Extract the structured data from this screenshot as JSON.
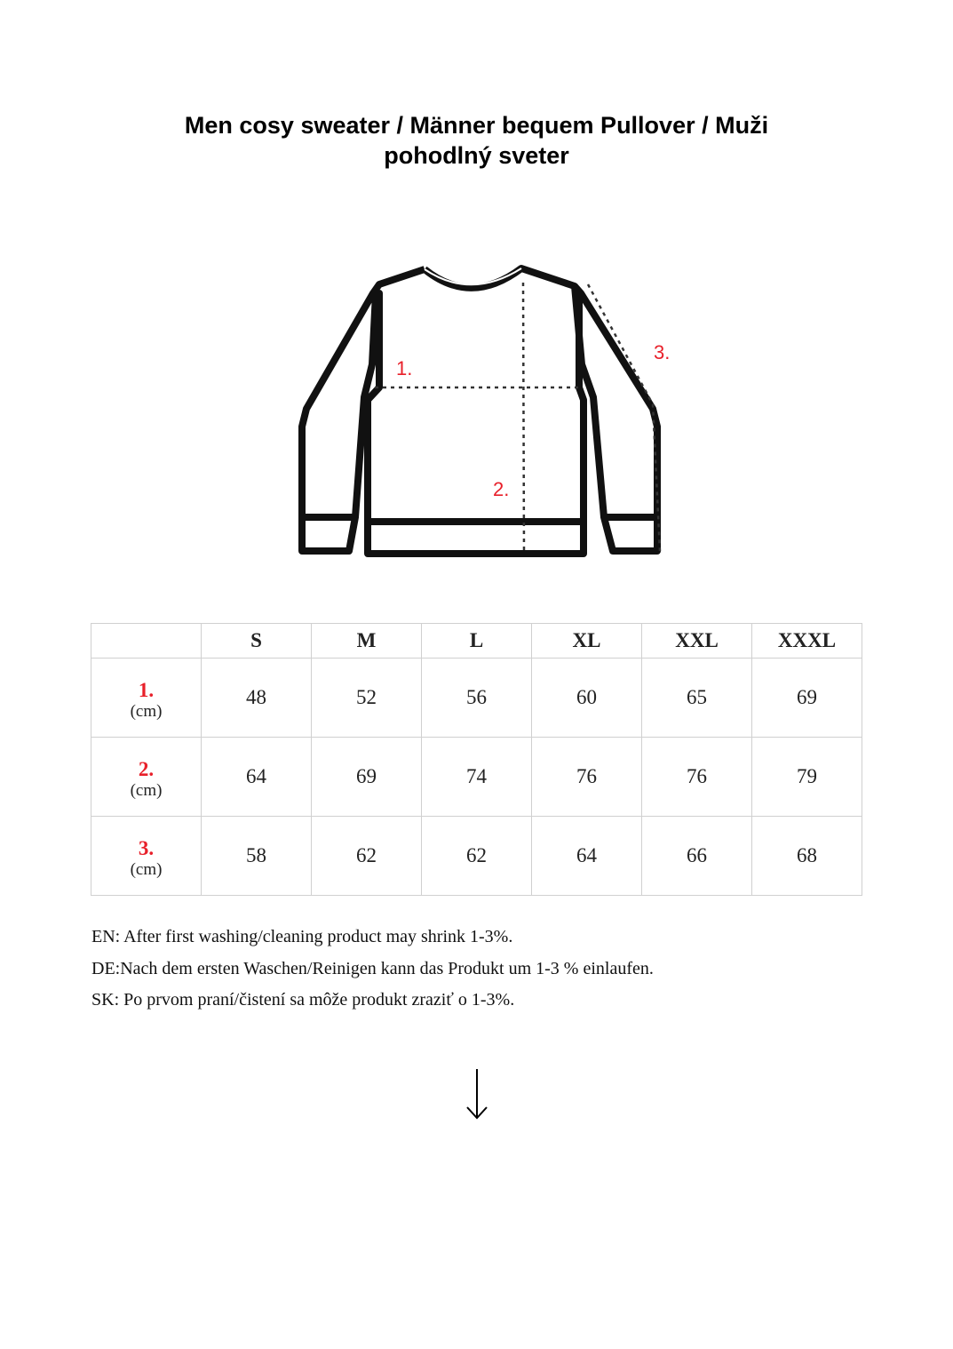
{
  "title": "Men cosy sweater /  Männer bequem Pullover / Muži pohodlný sveter",
  "diagram": {
    "labels": [
      "1.",
      "2.",
      "3."
    ],
    "label_color": "#e8202a"
  },
  "size_table": {
    "headers": [
      "",
      "S",
      "M",
      "L",
      "XL",
      "XXL",
      "XXXL"
    ],
    "rows": [
      {
        "label": "1.",
        "unit": "(cm)",
        "values": [
          "48",
          "52",
          "56",
          "60",
          "65",
          "69"
        ]
      },
      {
        "label": "2.",
        "unit": "(cm)",
        "values": [
          "64",
          "69",
          "74",
          "76",
          "76",
          "79"
        ]
      },
      {
        "label": "3.",
        "unit": "(cm)",
        "values": [
          "58",
          "62",
          "62",
          "64",
          "66",
          "68"
        ]
      }
    ]
  },
  "notes": [
    "EN: After first washing/cleaning product may shrink 1-3%.",
    "DE:Nach dem ersten Waschen/Reinigen kann das Produkt um 1-3 % einlaufen.",
    "SK: Po prvom praní/čistení sa môže produkt zraziť o 1-3%."
  ],
  "arrow_icon": "arrow-down-icon"
}
